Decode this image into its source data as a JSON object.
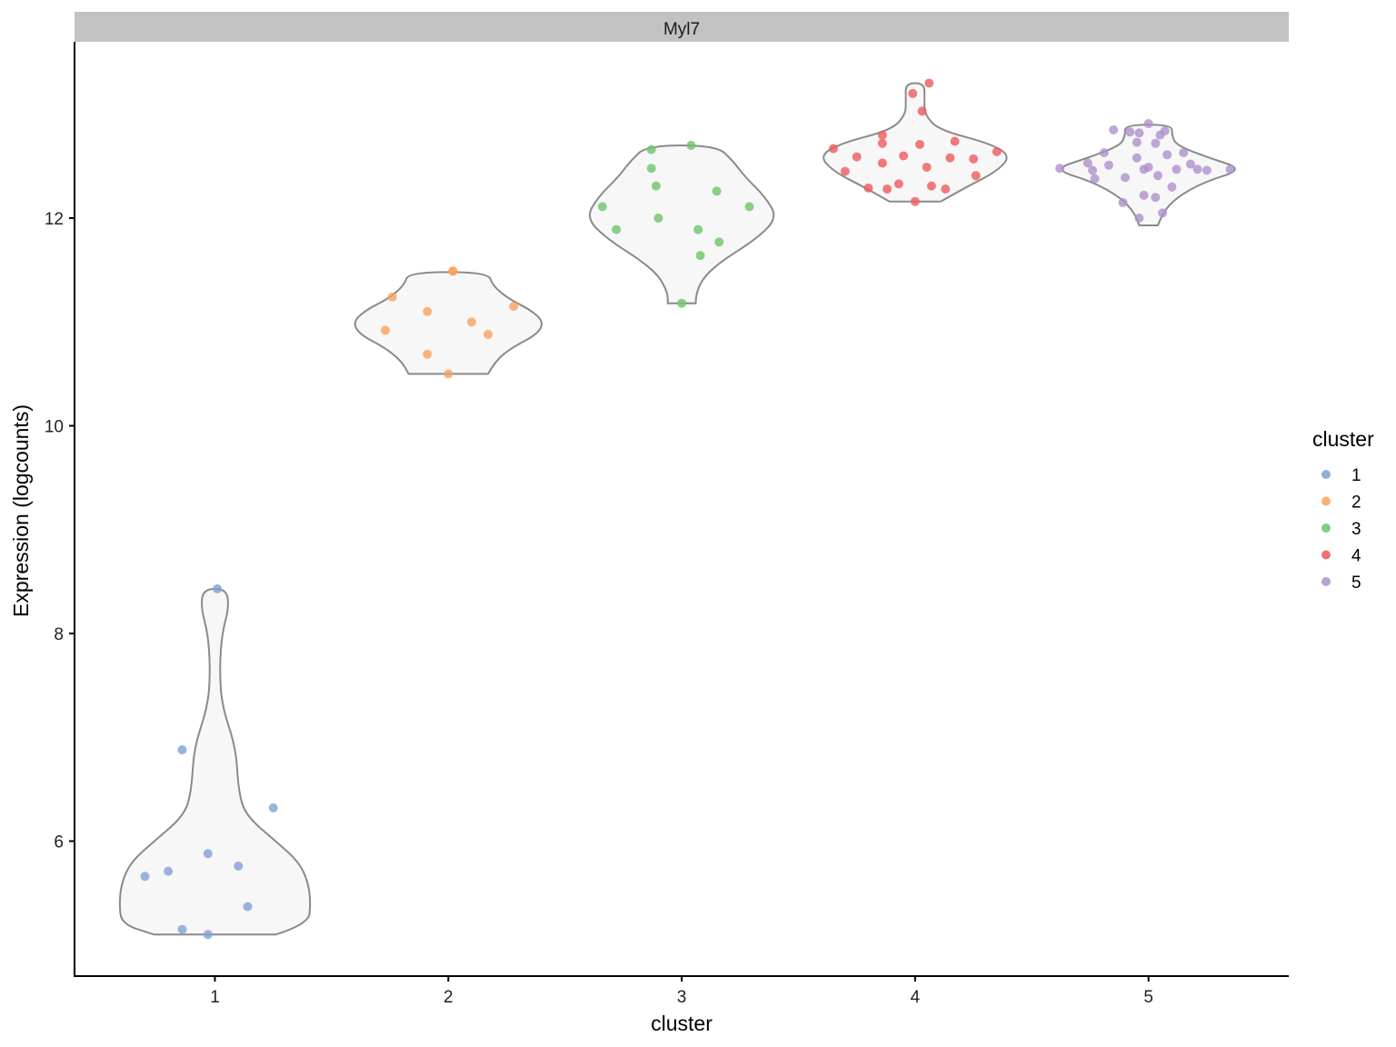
{
  "chart_data": {
    "type": "violin",
    "facet_title": "Myl7",
    "xlabel": "cluster",
    "ylabel": "Expression (logcounts)",
    "categories": [
      "1",
      "2",
      "3",
      "4",
      "5"
    ],
    "ylim": [
      4.7,
      13.7
    ],
    "yticks": [
      6,
      8,
      10,
      12
    ],
    "legend": {
      "title": "cluster",
      "position": "right",
      "items": [
        {
          "label": "1",
          "color": "#7fa0d4"
        },
        {
          "label": "2",
          "color": "#fba05a"
        },
        {
          "label": "3",
          "color": "#6cc46a"
        },
        {
          "label": "4",
          "color": "#ec5a5c"
        },
        {
          "label": "5",
          "color": "#ae90cc"
        }
      ]
    },
    "violin_style": {
      "fill": "#f7f7f7",
      "stroke": "#8a8a8a"
    },
    "violins": [
      {
        "cluster": "1",
        "ymin": 5.1,
        "ymax": 8.43,
        "profile": [
          [
            5.1,
            0.26
          ],
          [
            5.2,
            0.4
          ],
          [
            5.4,
            0.41
          ],
          [
            5.6,
            0.4
          ],
          [
            5.8,
            0.36
          ],
          [
            6.0,
            0.26
          ],
          [
            6.25,
            0.13
          ],
          [
            6.5,
            0.1
          ],
          [
            6.9,
            0.09
          ],
          [
            7.3,
            0.03
          ],
          [
            7.65,
            0.02
          ],
          [
            8.0,
            0.03
          ],
          [
            8.25,
            0.06
          ],
          [
            8.43,
            0.05
          ]
        ]
      },
      {
        "cluster": "2",
        "ymin": 10.5,
        "ymax": 11.48,
        "profile": [
          [
            10.5,
            0.17
          ],
          [
            10.62,
            0.2
          ],
          [
            10.75,
            0.27
          ],
          [
            10.88,
            0.38
          ],
          [
            11.0,
            0.41
          ],
          [
            11.12,
            0.35
          ],
          [
            11.22,
            0.26
          ],
          [
            11.35,
            0.19
          ],
          [
            11.48,
            0.17
          ]
        ]
      },
      {
        "cluster": "3",
        "ymin": 11.18,
        "ymax": 12.7,
        "profile": [
          [
            11.18,
            0.06
          ],
          [
            11.28,
            0.06
          ],
          [
            11.45,
            0.1
          ],
          [
            11.6,
            0.18
          ],
          [
            11.8,
            0.32
          ],
          [
            12.0,
            0.41
          ],
          [
            12.2,
            0.36
          ],
          [
            12.4,
            0.27
          ],
          [
            12.55,
            0.22
          ],
          [
            12.7,
            0.15
          ]
        ]
      },
      {
        "cluster": "4",
        "ymin": 12.16,
        "ymax": 13.3,
        "profile": [
          [
            12.16,
            0.11
          ],
          [
            12.3,
            0.22
          ],
          [
            12.45,
            0.35
          ],
          [
            12.6,
            0.41
          ],
          [
            12.72,
            0.32
          ],
          [
            12.85,
            0.1
          ],
          [
            13.0,
            0.04
          ],
          [
            13.15,
            0.04
          ],
          [
            13.3,
            0.04
          ]
        ]
      },
      {
        "cluster": "5",
        "ymin": 11.93,
        "ymax": 12.9,
        "profile": [
          [
            11.93,
            0.04
          ],
          [
            12.05,
            0.06
          ],
          [
            12.2,
            0.12
          ],
          [
            12.35,
            0.24
          ],
          [
            12.47,
            0.41
          ],
          [
            12.58,
            0.26
          ],
          [
            12.7,
            0.12
          ],
          [
            12.8,
            0.1
          ],
          [
            12.9,
            0.1
          ]
        ]
      }
    ],
    "points": [
      {
        "cluster": "1",
        "jitter": [
          -0.3,
          0.01,
          -0.14,
          0.25,
          0.1,
          -0.2,
          -0.14,
          0.14,
          -0.03,
          -0.03
        ],
        "y": [
          5.66,
          8.43,
          6.88,
          6.32,
          5.76,
          5.71,
          5.15,
          5.37,
          5.88,
          5.1
        ]
      },
      {
        "cluster": "2",
        "jitter": [
          -0.24,
          -0.27,
          -0.09,
          0.02,
          0.1,
          0.17,
          0.28,
          -0.09,
          0.0,
          0.02
        ],
        "y": [
          11.24,
          10.92,
          11.1,
          11.49,
          11.0,
          10.88,
          11.15,
          10.69,
          10.5,
          11.49
        ]
      },
      {
        "cluster": "3",
        "jitter": [
          -0.34,
          -0.28,
          -0.13,
          -0.11,
          -0.1,
          0.04,
          0.08,
          0.15,
          0.16,
          0.29,
          -0.13,
          0.0,
          0.07
        ],
        "y": [
          12.11,
          11.89,
          12.66,
          12.31,
          12.0,
          12.7,
          11.64,
          12.26,
          11.77,
          12.11,
          12.48,
          11.18,
          11.89
        ]
      },
      {
        "cluster": "4",
        "jitter": [
          -0.35,
          -0.3,
          -0.25,
          -0.2,
          -0.14,
          -0.14,
          -0.12,
          -0.07,
          -0.05,
          0.0,
          0.02,
          0.05,
          0.07,
          0.13,
          0.15,
          0.17,
          0.26,
          0.25,
          0.35,
          -0.01,
          0.03,
          0.06,
          -0.14
        ],
        "y": [
          12.67,
          12.45,
          12.59,
          12.29,
          12.8,
          12.53,
          12.28,
          12.33,
          12.6,
          12.16,
          12.71,
          12.49,
          12.31,
          12.28,
          12.58,
          12.74,
          12.41,
          12.57,
          12.64,
          13.2,
          13.03,
          13.3,
          12.72
        ]
      },
      {
        "cluster": "5",
        "jitter": [
          -0.38,
          -0.26,
          -0.24,
          -0.23,
          -0.19,
          -0.17,
          -0.15,
          -0.11,
          -0.1,
          -0.05,
          -0.05,
          -0.04,
          -0.02,
          -0.02,
          -0.0,
          0.03,
          0.04,
          0.05,
          0.06,
          0.08,
          0.1,
          0.12,
          0.15,
          0.18,
          0.21,
          0.25,
          0.35,
          -0.08,
          -0.04,
          0.0,
          0.07,
          0.03
        ],
        "y": [
          12.48,
          12.53,
          12.46,
          12.38,
          12.63,
          12.51,
          12.85,
          12.15,
          12.39,
          12.58,
          12.73,
          12.0,
          12.22,
          12.47,
          12.91,
          12.2,
          12.41,
          12.8,
          12.05,
          12.61,
          12.3,
          12.47,
          12.63,
          12.52,
          12.47,
          12.46,
          12.47,
          12.83,
          12.82,
          12.49,
          12.84,
          12.72
        ]
      }
    ]
  }
}
